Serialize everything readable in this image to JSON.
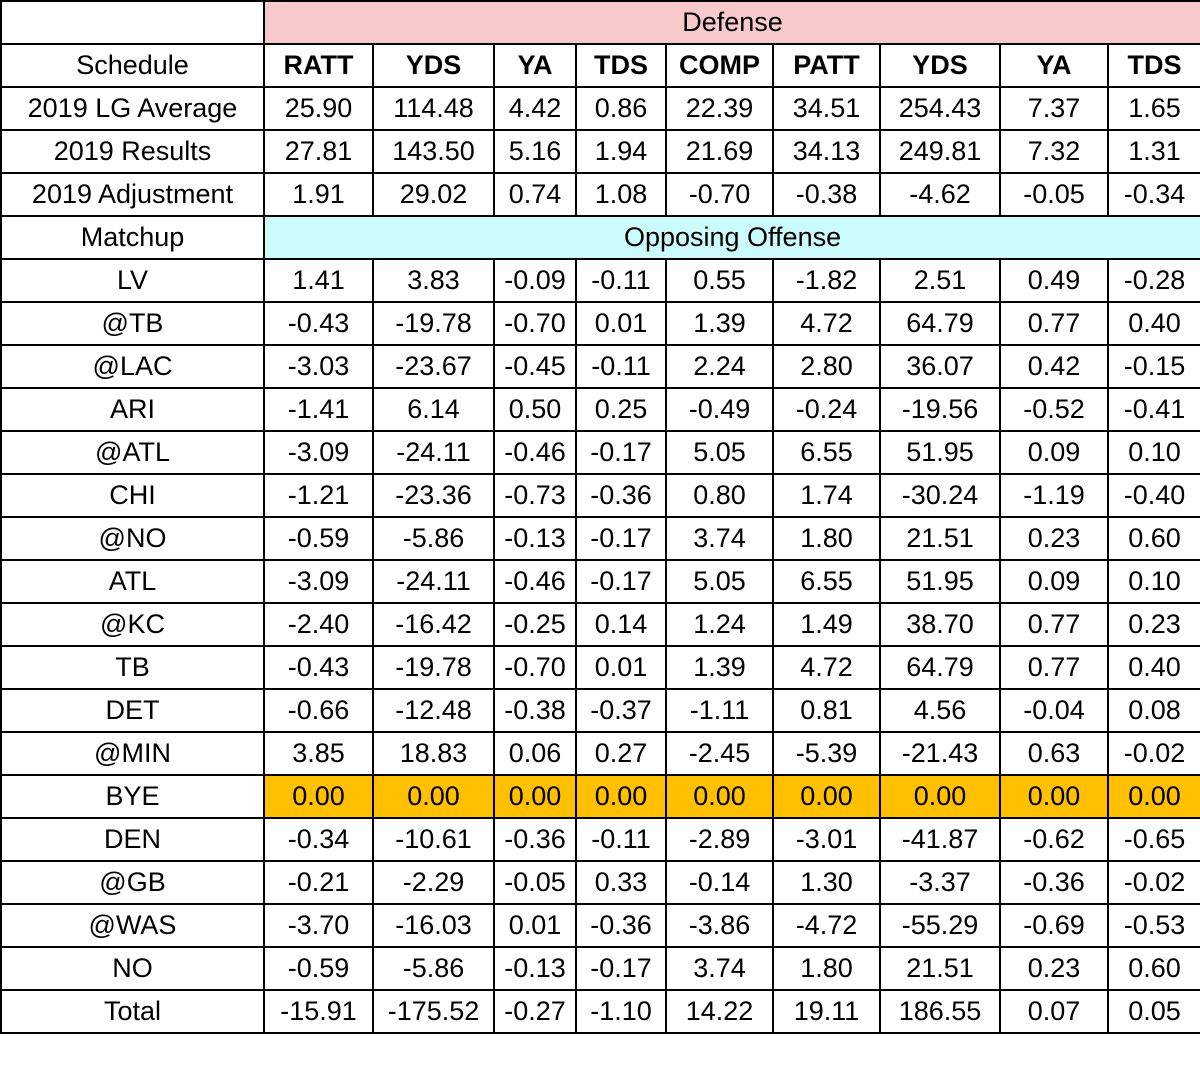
{
  "header": {
    "section_defense": "Defense",
    "section_opposing": "Opposing Offense",
    "schedule_label": "Schedule",
    "matchup_label": "Matchup",
    "columns": [
      "RATT",
      "YDS",
      "YA",
      "TDS",
      "COMP",
      "PATT",
      "YDS",
      "YA",
      "TDS"
    ]
  },
  "colors": {
    "defense_band": "#f7c8cc",
    "opposing_band": "#ccfbfc",
    "bye_highlight": "#ffc000"
  },
  "summary_rows": [
    {
      "label": "2019 LG Average",
      "values": [
        "25.90",
        "114.48",
        "4.42",
        "0.86",
        "22.39",
        "34.51",
        "254.43",
        "7.37",
        "1.65"
      ]
    },
    {
      "label": "2019 Results",
      "values": [
        "27.81",
        "143.50",
        "5.16",
        "1.94",
        "21.69",
        "34.13",
        "249.81",
        "7.32",
        "1.31"
      ]
    },
    {
      "label": "2019 Adjustment",
      "values": [
        "1.91",
        "29.02",
        "0.74",
        "1.08",
        "-0.70",
        "-0.38",
        "-4.62",
        "-0.05",
        "-0.34"
      ]
    }
  ],
  "matchup_rows": [
    {
      "label": "LV",
      "values": [
        "1.41",
        "3.83",
        "-0.09",
        "-0.11",
        "0.55",
        "-1.82",
        "2.51",
        "0.49",
        "-0.28"
      ]
    },
    {
      "label": "@TB",
      "values": [
        "-0.43",
        "-19.78",
        "-0.70",
        "0.01",
        "1.39",
        "4.72",
        "64.79",
        "0.77",
        "0.40"
      ]
    },
    {
      "label": "@LAC",
      "values": [
        "-3.03",
        "-23.67",
        "-0.45",
        "-0.11",
        "2.24",
        "2.80",
        "36.07",
        "0.42",
        "-0.15"
      ]
    },
    {
      "label": "ARI",
      "values": [
        "-1.41",
        "6.14",
        "0.50",
        "0.25",
        "-0.49",
        "-0.24",
        "-19.56",
        "-0.52",
        "-0.41"
      ]
    },
    {
      "label": "@ATL",
      "values": [
        "-3.09",
        "-24.11",
        "-0.46",
        "-0.17",
        "5.05",
        "6.55",
        "51.95",
        "0.09",
        "0.10"
      ]
    },
    {
      "label": "CHI",
      "values": [
        "-1.21",
        "-23.36",
        "-0.73",
        "-0.36",
        "0.80",
        "1.74",
        "-30.24",
        "-1.19",
        "-0.40"
      ]
    },
    {
      "label": "@NO",
      "values": [
        "-0.59",
        "-5.86",
        "-0.13",
        "-0.17",
        "3.74",
        "1.80",
        "21.51",
        "0.23",
        "0.60"
      ]
    },
    {
      "label": "ATL",
      "values": [
        "-3.09",
        "-24.11",
        "-0.46",
        "-0.17",
        "5.05",
        "6.55",
        "51.95",
        "0.09",
        "0.10"
      ]
    },
    {
      "label": "@KC",
      "values": [
        "-2.40",
        "-16.42",
        "-0.25",
        "0.14",
        "1.24",
        "1.49",
        "38.70",
        "0.77",
        "0.23"
      ]
    },
    {
      "label": "TB",
      "values": [
        "-0.43",
        "-19.78",
        "-0.70",
        "0.01",
        "1.39",
        "4.72",
        "64.79",
        "0.77",
        "0.40"
      ]
    },
    {
      "label": "DET",
      "values": [
        "-0.66",
        "-12.48",
        "-0.38",
        "-0.37",
        "-1.11",
        "0.81",
        "4.56",
        "-0.04",
        "0.08"
      ]
    },
    {
      "label": "@MIN",
      "values": [
        "3.85",
        "18.83",
        "0.06",
        "0.27",
        "-2.45",
        "-5.39",
        "-21.43",
        "0.63",
        "-0.02"
      ]
    },
    {
      "label": "BYE",
      "values": [
        "0.00",
        "0.00",
        "0.00",
        "0.00",
        "0.00",
        "0.00",
        "0.00",
        "0.00",
        "0.00"
      ],
      "highlight": true
    },
    {
      "label": "DEN",
      "values": [
        "-0.34",
        "-10.61",
        "-0.36",
        "-0.11",
        "-2.89",
        "-3.01",
        "-41.87",
        "-0.62",
        "-0.65"
      ]
    },
    {
      "label": "@GB",
      "values": [
        "-0.21",
        "-2.29",
        "-0.05",
        "0.33",
        "-0.14",
        "1.30",
        "-3.37",
        "-0.36",
        "-0.02"
      ]
    },
    {
      "label": "@WAS",
      "values": [
        "-3.70",
        "-16.03",
        "0.01",
        "-0.36",
        "-3.86",
        "-4.72",
        "-55.29",
        "-0.69",
        "-0.53"
      ]
    },
    {
      "label": "NO",
      "values": [
        "-0.59",
        "-5.86",
        "-0.13",
        "-0.17",
        "3.74",
        "1.80",
        "21.51",
        "0.23",
        "0.60"
      ]
    }
  ],
  "total_row": {
    "label": "Total",
    "values": [
      "-15.91",
      "-175.52",
      "-0.27",
      "-1.10",
      "14.22",
      "19.11",
      "186.55",
      "0.07",
      "0.05"
    ]
  }
}
